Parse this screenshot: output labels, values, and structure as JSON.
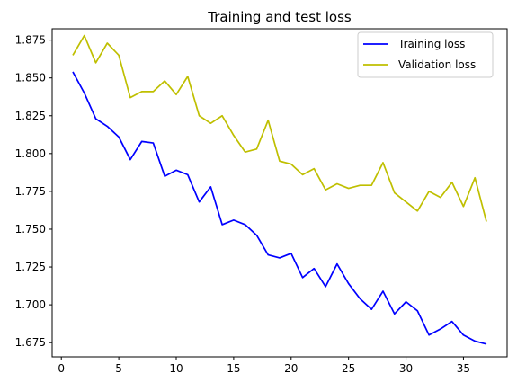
{
  "chart_data": {
    "type": "line",
    "title": "Training and test loss",
    "xlabel": "",
    "ylabel": "",
    "xlim": [
      -0.8,
      38.8
    ],
    "ylim": [
      1.6656,
      1.8825
    ],
    "xticks": [
      0,
      5,
      10,
      15,
      20,
      25,
      30,
      35
    ],
    "xtick_labels": [
      "0",
      "5",
      "10",
      "15",
      "20",
      "25",
      "30",
      "35"
    ],
    "yticks": [
      1.675,
      1.7,
      1.725,
      1.75,
      1.775,
      1.8,
      1.825,
      1.85,
      1.875
    ],
    "ytick_labels": [
      "1.675",
      "1.700",
      "1.725",
      "1.750",
      "1.775",
      "1.800",
      "1.825",
      "1.850",
      "1.875"
    ],
    "grid": false,
    "legend_position": "top-right",
    "x": [
      1,
      2,
      3,
      4,
      5,
      6,
      7,
      8,
      9,
      10,
      11,
      12,
      13,
      14,
      15,
      16,
      17,
      18,
      19,
      20,
      21,
      22,
      23,
      24,
      25,
      26,
      27,
      28,
      29,
      30,
      31,
      32,
      33,
      34,
      35,
      36,
      37
    ],
    "series": [
      {
        "name": "Training loss",
        "color": "#0000ff",
        "values": [
          1.854,
          1.84,
          1.823,
          1.818,
          1.811,
          1.796,
          1.808,
          1.807,
          1.785,
          1.789,
          1.786,
          1.768,
          1.778,
          1.753,
          1.756,
          1.753,
          1.746,
          1.733,
          1.731,
          1.734,
          1.718,
          1.724,
          1.712,
          1.727,
          1.714,
          1.704,
          1.697,
          1.709,
          1.694,
          1.702,
          1.696,
          1.68,
          1.684,
          1.689,
          1.68,
          1.676,
          1.674
        ]
      },
      {
        "name": "Validation loss",
        "color": "#bfbf00",
        "values": [
          1.865,
          1.878,
          1.86,
          1.873,
          1.865,
          1.837,
          1.841,
          1.841,
          1.848,
          1.839,
          1.851,
          1.825,
          1.82,
          1.825,
          1.812,
          1.801,
          1.803,
          1.822,
          1.795,
          1.793,
          1.786,
          1.79,
          1.776,
          1.78,
          1.777,
          1.779,
          1.779,
          1.794,
          1.774,
          1.768,
          1.762,
          1.775,
          1.771,
          1.781,
          1.765,
          1.784,
          1.755
        ]
      }
    ]
  }
}
